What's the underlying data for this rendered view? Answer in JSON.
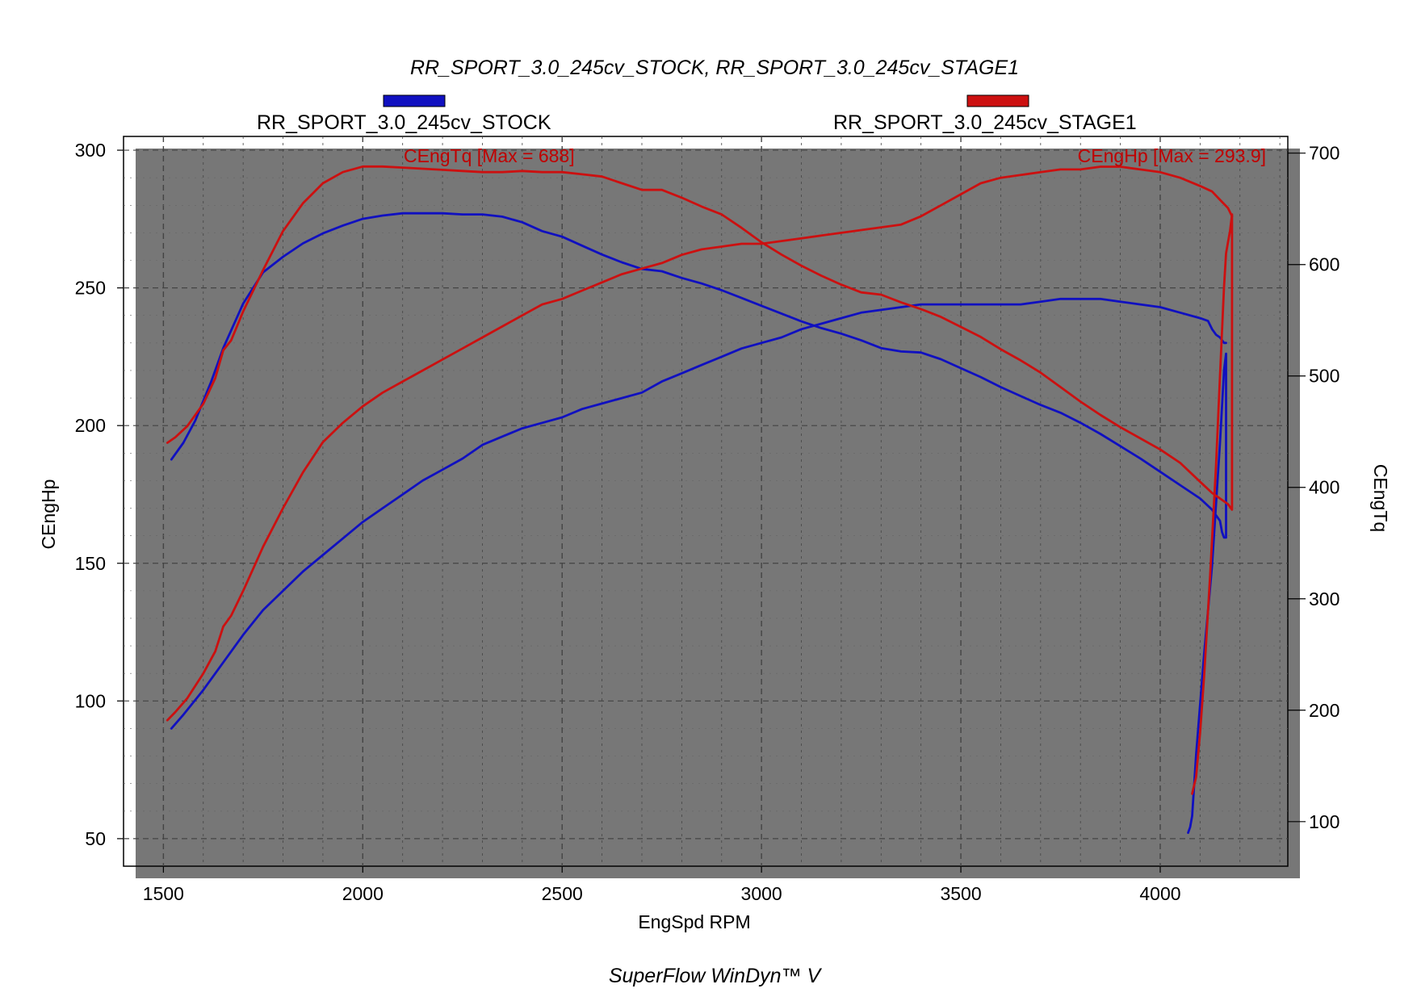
{
  "chart_data": {
    "type": "line",
    "title": "RR_SPORT_3.0_245cv_STOCK, RR_SPORT_3.0_245cv_STAGE1",
    "xlabel": "EngSpd RPM",
    "ylabel_left": "CEngHp",
    "ylabel_right": "CEngTq",
    "xlim": [
      1400,
      4320
    ],
    "ylim_left": [
      40,
      305
    ],
    "ylim_right": [
      60,
      715
    ],
    "x_ticks": [
      1500,
      2000,
      2500,
      3000,
      3500,
      4000
    ],
    "y_ticks_left": [
      50,
      100,
      150,
      200,
      250,
      300
    ],
    "y_ticks_right": [
      100,
      200,
      300,
      400,
      500,
      600,
      700
    ],
    "grid": true,
    "legend": [
      {
        "name": "RR_SPORT_3.0_245cv_STOCK",
        "color": "#1010c0"
      },
      {
        "name": "RR_SPORT_3.0_245cv_STAGE1",
        "color": "#cc1010"
      }
    ],
    "annotations": {
      "torque_max": "CEngTq [Max = 688]",
      "hp_max": "CEngHp [Max = 293.9]"
    },
    "series": [
      {
        "name": "RR_SPORT_3.0_245cv_STOCK",
        "quantity": "CEngTq",
        "axis": "right",
        "color": "#1010c0",
        "x": [
          1520,
          1550,
          1580,
          1620,
          1650,
          1700,
          1750,
          1800,
          1850,
          1900,
          1950,
          2000,
          2050,
          2100,
          2150,
          2200,
          2250,
          2300,
          2350,
          2400,
          2450,
          2500,
          2550,
          2600,
          2650,
          2700,
          2750,
          2800,
          2850,
          2900,
          2950,
          3000,
          3050,
          3100,
          3150,
          3200,
          3250,
          3300,
          3350,
          3400,
          3450,
          3500,
          3550,
          3600,
          3650,
          3700,
          3750,
          3800,
          3850,
          3900,
          3950,
          4000,
          4050,
          4100,
          4130,
          4150,
          4155,
          4160,
          4165,
          4165,
          4160,
          4150,
          4130,
          4110,
          4090,
          4080,
          4075,
          4070
        ],
        "y": [
          425,
          440,
          460,
          495,
          525,
          565,
          593,
          607,
          619,
          628,
          635,
          641,
          644,
          646,
          646,
          646,
          645,
          645,
          643,
          638,
          630,
          625,
          617,
          609,
          602,
          596,
          594,
          588,
          583,
          577,
          570,
          563,
          556,
          549,
          543,
          538,
          532,
          525,
          522,
          521,
          515,
          507,
          499,
          490,
          482,
          474,
          467,
          458,
          448,
          437,
          426,
          414,
          402,
          390,
          380,
          370,
          360,
          355,
          355,
          520,
          505,
          440,
          330,
          250,
          160,
          105,
          95,
          90
        ]
      },
      {
        "name": "RR_SPORT_3.0_245cv_STOCK",
        "quantity": "CEngHp",
        "axis": "left",
        "color": "#1010c0",
        "x": [
          1520,
          1550,
          1600,
          1650,
          1700,
          1750,
          1800,
          1850,
          1900,
          1950,
          2000,
          2050,
          2100,
          2150,
          2200,
          2250,
          2300,
          2350,
          2400,
          2450,
          2500,
          2550,
          2600,
          2650,
          2700,
          2750,
          2800,
          2850,
          2900,
          2950,
          3000,
          3050,
          3100,
          3150,
          3200,
          3250,
          3300,
          3350,
          3400,
          3450,
          3500,
          3550,
          3600,
          3650,
          3700,
          3750,
          3800,
          3850,
          3900,
          3950,
          4000,
          4050,
          4100,
          4120,
          4130,
          4140,
          4150,
          4160,
          4165
        ],
        "y": [
          90,
          95,
          104,
          114,
          124,
          133,
          140,
          147,
          153,
          159,
          165,
          170,
          175,
          180,
          184,
          188,
          193,
          196,
          199,
          201,
          203,
          206,
          208,
          210,
          212,
          216,
          219,
          222,
          225,
          228,
          230,
          232,
          235,
          237,
          239,
          241,
          242,
          243,
          244,
          244,
          244,
          244,
          244,
          244,
          245,
          246,
          246,
          246,
          245,
          244,
          243,
          241,
          239,
          238,
          235,
          233,
          232,
          230,
          230
        ]
      },
      {
        "name": "RR_SPORT_3.0_245cv_STAGE1",
        "quantity": "CEngTq",
        "axis": "right",
        "color": "#cc1010",
        "x": [
          1510,
          1530,
          1560,
          1600,
          1630,
          1650,
          1670,
          1700,
          1750,
          1800,
          1850,
          1900,
          1950,
          2000,
          2050,
          2100,
          2150,
          2200,
          2250,
          2300,
          2350,
          2400,
          2450,
          2500,
          2550,
          2600,
          2650,
          2700,
          2750,
          2800,
          2850,
          2900,
          2950,
          3000,
          3050,
          3100,
          3150,
          3200,
          3250,
          3300,
          3350,
          3400,
          3450,
          3500,
          3550,
          3600,
          3650,
          3700,
          3750,
          3800,
          3850,
          3900,
          3950,
          4000,
          4050,
          4100,
          4130,
          4150,
          4170,
          4180,
          4180,
          4175,
          4170,
          4165,
          4160,
          4150,
          4140,
          4125,
          4110,
          4100,
          4090,
          4080
        ],
        "y": [
          440,
          445,
          455,
          475,
          498,
          523,
          532,
          558,
          595,
          630,
          655,
          673,
          683,
          688,
          688,
          687,
          686,
          685,
          684,
          683,
          683,
          684,
          683,
          683,
          681,
          679,
          673,
          667,
          667,
          660,
          652,
          645,
          633,
          620,
          609,
          599,
          590,
          582,
          575,
          573,
          566,
          560,
          553,
          544,
          535,
          524,
          514,
          503,
          490,
          477,
          465,
          454,
          444,
          434,
          422,
          405,
          395,
          390,
          385,
          380,
          645,
          630,
          620,
          610,
          580,
          500,
          420,
          320,
          230,
          180,
          140,
          125
        ]
      },
      {
        "name": "RR_SPORT_3.0_245cv_STAGE1",
        "quantity": "CEngHp",
        "axis": "left",
        "color": "#cc1010",
        "x": [
          1510,
          1530,
          1560,
          1600,
          1630,
          1650,
          1670,
          1700,
          1750,
          1800,
          1850,
          1900,
          1950,
          2000,
          2050,
          2100,
          2150,
          2200,
          2250,
          2300,
          2350,
          2400,
          2450,
          2500,
          2550,
          2600,
          2650,
          2700,
          2750,
          2800,
          2850,
          2900,
          2950,
          3000,
          3050,
          3100,
          3150,
          3200,
          3250,
          3300,
          3350,
          3400,
          3450,
          3500,
          3550,
          3600,
          3650,
          3700,
          3750,
          3800,
          3850,
          3900,
          3950,
          4000,
          4050,
          4100,
          4130,
          4150,
          4170,
          4180
        ],
        "y": [
          93,
          96,
          101,
          110,
          118,
          127,
          131,
          140,
          156,
          170,
          183,
          194,
          201,
          207,
          212,
          216,
          220,
          224,
          228,
          232,
          236,
          240,
          244,
          246,
          249,
          252,
          255,
          257,
          259,
          262,
          264,
          265,
          266,
          266,
          267,
          268,
          269,
          270,
          271,
          272,
          273,
          276,
          280,
          284,
          288,
          290,
          291,
          292,
          293,
          293,
          294,
          294,
          293,
          292,
          290,
          287,
          285,
          282,
          279,
          276
        ]
      }
    ]
  }
}
